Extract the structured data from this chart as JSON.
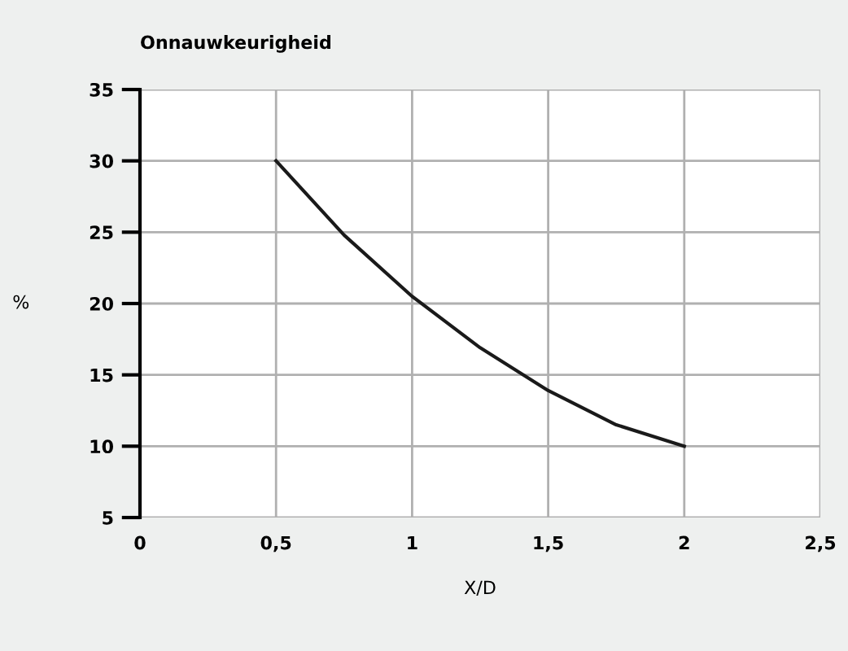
{
  "chart_data": {
    "type": "line",
    "title": "Onnauwkeurigheid",
    "xlabel": "X/D",
    "ylabel": "%",
    "x": [
      0.5,
      0.75,
      1,
      1.25,
      1.5,
      1.75,
      2
    ],
    "series": [
      {
        "color": "#1a1a1a",
        "values": [
          30,
          24.8,
          20.5,
          16.9,
          13.9,
          11.5,
          10
        ]
      }
    ],
    "xlim": [
      0,
      2.5
    ],
    "xticks": [
      0,
      {
        "value": 0.5,
        "label": "0,5"
      },
      1,
      {
        "value": 1.5,
        "label": "1,5"
      },
      2,
      {
        "value": 2.5,
        "label": "2,5"
      }
    ],
    "ylim": [
      5,
      35
    ],
    "yticks": [
      5,
      10,
      15,
      20,
      25,
      30,
      35
    ],
    "grid": true,
    "marker": "none",
    "line_style": "solid"
  }
}
